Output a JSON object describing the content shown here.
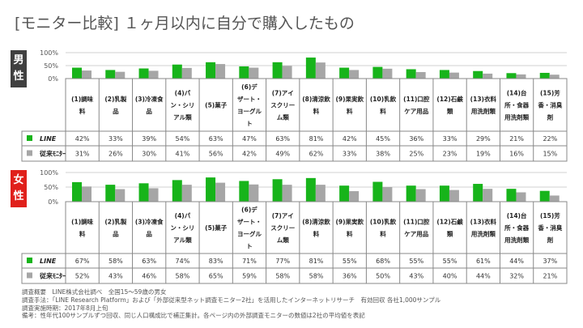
{
  "title": "[モニター比較] １ヶ月以内に自分で購入したもの",
  "colors": {
    "line": "#17b41a",
    "other": "#a6a6a6",
    "male": "#404040",
    "female": "#e0201b"
  },
  "chart_data": [
    {
      "type": "bar",
      "section": "男性",
      "ylim": [
        0,
        100
      ],
      "yticks": [
        "100%",
        "50%",
        "0%"
      ],
      "grid": true,
      "categories": [
        "(1)調味料",
        "(2)乳製品",
        "(3)冷凍食品",
        "(4)パン・シリアル類",
        "(5)菓子",
        "(6)デザート・ヨーグルト",
        "(7)アイスクリーム類",
        "(8)清涼飲料",
        "(9)果実飲料",
        "(10)乳飲料",
        "(11)口腔ケア用品",
        "(12)石鹸類",
        "(13)衣料用洗剤類",
        "(14)台所・食器用洗剤類",
        "(15)芳香・消臭剤"
      ],
      "series": [
        {
          "name": "LINE",
          "values": [
            42,
            33,
            39,
            54,
            63,
            47,
            63,
            81,
            42,
            45,
            36,
            33,
            29,
            21,
            22
          ]
        },
        {
          "name": "従来ﾓﾆﾀｰ",
          "values": [
            31,
            26,
            30,
            41,
            56,
            42,
            49,
            62,
            33,
            38,
            25,
            23,
            19,
            16,
            15
          ]
        }
      ]
    },
    {
      "type": "bar",
      "section": "女性",
      "ylim": [
        0,
        100
      ],
      "yticks": [
        "100%",
        "50%",
        "0%"
      ],
      "grid": true,
      "categories": [
        "(1)調味料",
        "(2)乳製品",
        "(3)冷凍食品",
        "(4)パン・シリアル類",
        "(5)菓子",
        "(6)デザート・ヨーグルト",
        "(7)アイスクリーム類",
        "(8)清涼飲料",
        "(9)果実飲料",
        "(10)乳飲料",
        "(11)口腔ケア用品",
        "(12)石鹸類",
        "(13)衣料用洗剤類",
        "(14)台所・食器用洗剤類",
        "(15)芳香・消臭剤"
      ],
      "series": [
        {
          "name": "LINE",
          "values": [
            67,
            58,
            63,
            74,
            83,
            71,
            77,
            81,
            55,
            68,
            55,
            55,
            61,
            44,
            37
          ]
        },
        {
          "name": "従来ﾓﾆﾀｰ",
          "values": [
            52,
            43,
            46,
            58,
            65,
            59,
            58,
            58,
            36,
            50,
            43,
            40,
            44,
            32,
            21
          ]
        }
      ]
    }
  ],
  "cat_lines": [
    [
      "(1)調味",
      "料"
    ],
    [
      "(2)乳製",
      "品"
    ],
    [
      "(3)冷凍食",
      "品"
    ],
    [
      "(4)パ",
      "ン・シリ",
      "アル類"
    ],
    [
      "(5)菓子"
    ],
    [
      "(6)デ",
      "ザート・",
      "ヨーグル",
      "ト"
    ],
    [
      "(7)アイ",
      "スクリー",
      "ム類"
    ],
    [
      "(8)清涼飲",
      "料"
    ],
    [
      "(9)果実飲",
      "料"
    ],
    [
      "(10)乳飲",
      "料"
    ],
    [
      "(11)口腔",
      "ケア用品"
    ],
    [
      "(12)石鹸",
      "類"
    ],
    [
      "(13)衣料",
      "用洗剤類"
    ],
    [
      "(14)台",
      "所・食器",
      "用洗剤類"
    ],
    [
      "(15)芳",
      "香・消臭",
      "剤"
    ]
  ],
  "footer": [
    "調査概要　LINE株式会社調べ　全国15～59歳の男女",
    "調査手法：「LINE Research Platform」および「外部従来型ネット調査モニター2社」を活用したインターネットリサーチ　有効回収 各社1,000サンプル",
    "調査実施時期：2017年8月上旬",
    "備考：性年代100サンプルずつ回収、同じ人口構成比で補正集計。各ページ内の外部調査モニターの数値は2社の平均値を表記"
  ]
}
